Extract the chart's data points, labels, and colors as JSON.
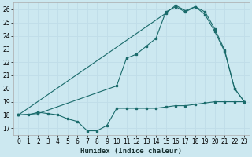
{
  "xlabel": "Humidex (Indice chaleur)",
  "bg_color": "#cce8f0",
  "grid_color": "#c0dde8",
  "line_color": "#1a6b6b",
  "xlim": [
    -0.5,
    23.5
  ],
  "ylim": [
    16.5,
    26.5
  ],
  "xticks": [
    0,
    1,
    2,
    3,
    4,
    5,
    6,
    7,
    8,
    9,
    10,
    11,
    12,
    13,
    14,
    15,
    16,
    17,
    18,
    19,
    20,
    21,
    22,
    23
  ],
  "yticks": [
    17,
    18,
    19,
    20,
    21,
    22,
    23,
    24,
    25,
    26
  ],
  "curve1_x": [
    0,
    1,
    2,
    3,
    4,
    5,
    6,
    7,
    8,
    9,
    10,
    11,
    12,
    13,
    14,
    15,
    16,
    17,
    18,
    19,
    20,
    21,
    22,
    23
  ],
  "curve1_y": [
    18.0,
    18.0,
    18.2,
    18.1,
    18.0,
    17.7,
    17.5,
    16.8,
    16.8,
    17.2,
    18.5,
    18.5,
    18.5,
    18.5,
    18.5,
    18.6,
    18.7,
    18.7,
    18.8,
    18.9,
    19.0,
    19.0,
    19.0,
    19.0
  ],
  "curve2_x": [
    0,
    2,
    10,
    11,
    12,
    13,
    14,
    15,
    16,
    17,
    18,
    19,
    20,
    21,
    22,
    23
  ],
  "curve2_y": [
    18.0,
    18.1,
    20.2,
    22.3,
    22.6,
    23.2,
    23.8,
    25.8,
    26.2,
    25.8,
    26.2,
    25.6,
    24.3,
    22.8,
    20.0,
    19.0
  ],
  "curve3_x": [
    0,
    15,
    16,
    17,
    18,
    19,
    20,
    21,
    22,
    23
  ],
  "curve3_y": [
    18.0,
    25.7,
    26.3,
    25.9,
    26.2,
    25.8,
    24.5,
    22.9,
    20.0,
    19.0
  ]
}
